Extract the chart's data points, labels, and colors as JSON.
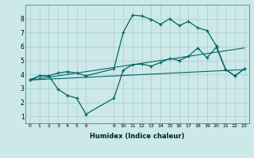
{
  "xlabel": "Humidex (Indice chaleur)",
  "bg_color": "#cce8e8",
  "grid_color": "#aacccc",
  "line_color": "#006666",
  "xlim": [
    -0.5,
    23.5
  ],
  "ylim": [
    0.5,
    9.0
  ],
  "xticks": [
    0,
    1,
    2,
    3,
    4,
    5,
    6,
    9,
    10,
    11,
    12,
    13,
    14,
    15,
    16,
    17,
    18,
    19,
    20,
    21,
    22,
    23
  ],
  "yticks": [
    1,
    2,
    3,
    4,
    5,
    6,
    7,
    8
  ],
  "line1_x": [
    0,
    1,
    2,
    3,
    4,
    5,
    6,
    9,
    10,
    11,
    12,
    13,
    14,
    15,
    16,
    17,
    18,
    19,
    20,
    21,
    22,
    23
  ],
  "line1_y": [
    3.6,
    3.9,
    3.9,
    4.1,
    4.2,
    4.1,
    3.9,
    4.4,
    7.0,
    8.25,
    8.2,
    7.95,
    7.6,
    8.0,
    7.5,
    7.8,
    7.35,
    7.15,
    6.05,
    4.35,
    3.9,
    4.4
  ],
  "line2_x": [
    0,
    1,
    2,
    3,
    4,
    5,
    6,
    9,
    10,
    11,
    12,
    13,
    14,
    15,
    16,
    17,
    18,
    19,
    20,
    21,
    22,
    23
  ],
  "line2_y": [
    3.6,
    3.9,
    3.9,
    2.95,
    2.5,
    2.3,
    1.15,
    2.3,
    4.3,
    4.7,
    4.75,
    4.6,
    4.85,
    5.15,
    5.0,
    5.3,
    5.9,
    5.2,
    5.95,
    4.35,
    3.9,
    4.4
  ],
  "line3_x": [
    0,
    23
  ],
  "line3_y": [
    3.6,
    4.35
  ],
  "line4_x": [
    0,
    23
  ],
  "line4_y": [
    3.6,
    5.9
  ]
}
